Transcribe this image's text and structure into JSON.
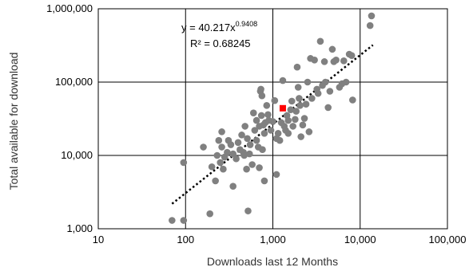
{
  "chart_data": {
    "type": "scatter",
    "title": "",
    "xlabel": "Downloads  last 12 Months",
    "ylabel": "Total available for download",
    "x_scale": "log",
    "y_scale": "log",
    "xlim": [
      10,
      100000
    ],
    "ylim": [
      1000,
      1000000
    ],
    "x_ticks": [
      10,
      100,
      1000,
      10000,
      100000
    ],
    "y_ticks": [
      1000,
      10000,
      100000,
      1000000
    ],
    "x_tick_labels": [
      "10",
      "100",
      "1,000",
      "10,000",
      "100,000"
    ],
    "y_tick_labels": [
      "1,000",
      "10,000",
      "100,000",
      "1,000,000"
    ],
    "grid": true,
    "legend": "none",
    "colors": {
      "points": "#808080",
      "highlight": "#ff0000",
      "trendline": "#000000",
      "grid": "#000000"
    },
    "annotation": {
      "equation_prefix": "y = 40.217x",
      "equation_exponent": "0.9408",
      "r_squared": "R² = 0.68245"
    },
    "trendline": {
      "type": "power",
      "coefficient": 40.217,
      "exponent": 0.9408,
      "x_range": [
        70,
        14000
      ]
    },
    "highlight_point": {
      "x": 1300,
      "y": 44000
    },
    "points": [
      [
        70,
        1300
      ],
      [
        95,
        1300
      ],
      [
        95,
        8000
      ],
      [
        160,
        13000
      ],
      [
        190,
        1600
      ],
      [
        200,
        7000
      ],
      [
        220,
        4500
      ],
      [
        230,
        10000
      ],
      [
        240,
        16000
      ],
      [
        250,
        8000
      ],
      [
        260,
        21000
      ],
      [
        260,
        13000
      ],
      [
        270,
        6500
      ],
      [
        280,
        9500
      ],
      [
        300,
        11000
      ],
      [
        310,
        16000
      ],
      [
        330,
        14000
      ],
      [
        350,
        3800
      ],
      [
        350,
        10500
      ],
      [
        380,
        9000
      ],
      [
        400,
        15000
      ],
      [
        420,
        12000
      ],
      [
        440,
        19000
      ],
      [
        460,
        11000
      ],
      [
        470,
        10000
      ],
      [
        480,
        25000
      ],
      [
        500,
        6500
      ],
      [
        510,
        17000
      ],
      [
        520,
        1750
      ],
      [
        540,
        10500
      ],
      [
        550,
        14000
      ],
      [
        580,
        7500
      ],
      [
        600,
        38000
      ],
      [
        620,
        22000
      ],
      [
        650,
        16000
      ],
      [
        650,
        30000
      ],
      [
        680,
        13000
      ],
      [
        700,
        25000
      ],
      [
        700,
        6800
      ],
      [
        720,
        75000
      ],
      [
        730,
        80000
      ],
      [
        740,
        35000
      ],
      [
        750,
        65000
      ],
      [
        760,
        12000
      ],
      [
        780,
        26000
      ],
      [
        800,
        20000
      ],
      [
        800,
        4500
      ],
      [
        820,
        28000
      ],
      [
        850,
        48000
      ],
      [
        880,
        36000
      ],
      [
        900,
        30000
      ],
      [
        950,
        22000
      ],
      [
        1000,
        29000
      ],
      [
        1050,
        56000
      ],
      [
        1100,
        5500
      ],
      [
        1100,
        17000
      ],
      [
        1150,
        20000
      ],
      [
        1200,
        16000
      ],
      [
        1250,
        28000
      ],
      [
        1300,
        105000
      ],
      [
        1350,
        25000
      ],
      [
        1400,
        22000
      ],
      [
        1450,
        35000
      ],
      [
        1500,
        30000
      ],
      [
        1500,
        20000
      ],
      [
        1600,
        42000
      ],
      [
        1650,
        55000
      ],
      [
        1700,
        25000
      ],
      [
        1800,
        31000
      ],
      [
        1850,
        40000
      ],
      [
        1900,
        160000
      ],
      [
        1950,
        85000
      ],
      [
        2000,
        60000
      ],
      [
        2050,
        48000
      ],
      [
        2100,
        18000
      ],
      [
        2200,
        26000
      ],
      [
        2300,
        32000
      ],
      [
        2400,
        50000
      ],
      [
        2500,
        100000
      ],
      [
        2600,
        21000
      ],
      [
        2700,
        210000
      ],
      [
        2800,
        60000
      ],
      [
        3000,
        200000
      ],
      [
        3200,
        80000
      ],
      [
        3300,
        70000
      ],
      [
        3500,
        360000
      ],
      [
        3700,
        90000
      ],
      [
        3900,
        190000
      ],
      [
        4000,
        100000
      ],
      [
        4300,
        45000
      ],
      [
        4500,
        75000
      ],
      [
        4800,
        280000
      ],
      [
        5000,
        190000
      ],
      [
        5300,
        200000
      ],
      [
        5800,
        85000
      ],
      [
        6200,
        95000
      ],
      [
        6500,
        195000
      ],
      [
        6900,
        100000
      ],
      [
        7500,
        240000
      ],
      [
        8000,
        230000
      ],
      [
        8200,
        57000
      ],
      [
        13000,
        590000
      ],
      [
        13500,
        800000
      ]
    ]
  }
}
